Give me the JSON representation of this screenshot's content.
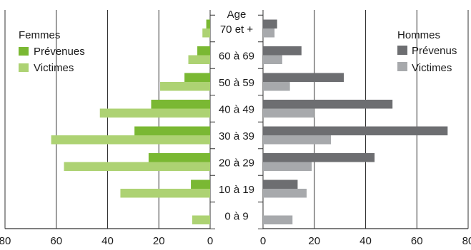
{
  "chart_data": {
    "type": "bar",
    "orientation": "horizontal",
    "layout": "population-pyramid",
    "center_label": "Age",
    "categories": [
      "70 et +",
      "60 à 69",
      "50 à 59",
      "40 à 49",
      "30 à 39",
      "20 à 29",
      "10 à 19",
      "0 à 9"
    ],
    "left_panel": {
      "legend_title": "Femmes",
      "legend_position": "top-left",
      "xlim": [
        0,
        80
      ],
      "ticks": [
        "80",
        "60",
        "40",
        "20",
        "0"
      ],
      "series": [
        {
          "name": "Prévenues",
          "color": "#7ab833",
          "values": [
            1.5,
            5,
            10,
            23,
            29.5,
            24,
            7.5,
            0
          ]
        },
        {
          "name": "Victimes",
          "color": "#add273",
          "values": [
            3,
            8.5,
            19.5,
            43,
            62,
            57,
            35,
            7
          ]
        }
      ]
    },
    "right_panel": {
      "legend_title": "Hommes",
      "legend_position": "top-right",
      "xlim": [
        0,
        80
      ],
      "ticks": [
        "0",
        "20",
        "40",
        "60",
        "80"
      ],
      "series": [
        {
          "name": "Prévenus",
          "color": "#6d6e71",
          "values": [
            5.5,
            15,
            31.5,
            50.5,
            72,
            43.5,
            13.5,
            0
          ]
        },
        {
          "name": "Victimes",
          "color": "#a7a9ac",
          "values": [
            4.5,
            7.5,
            10.5,
            20,
            26.5,
            19,
            17,
            11.5
          ]
        }
      ]
    },
    "grid": true
  }
}
